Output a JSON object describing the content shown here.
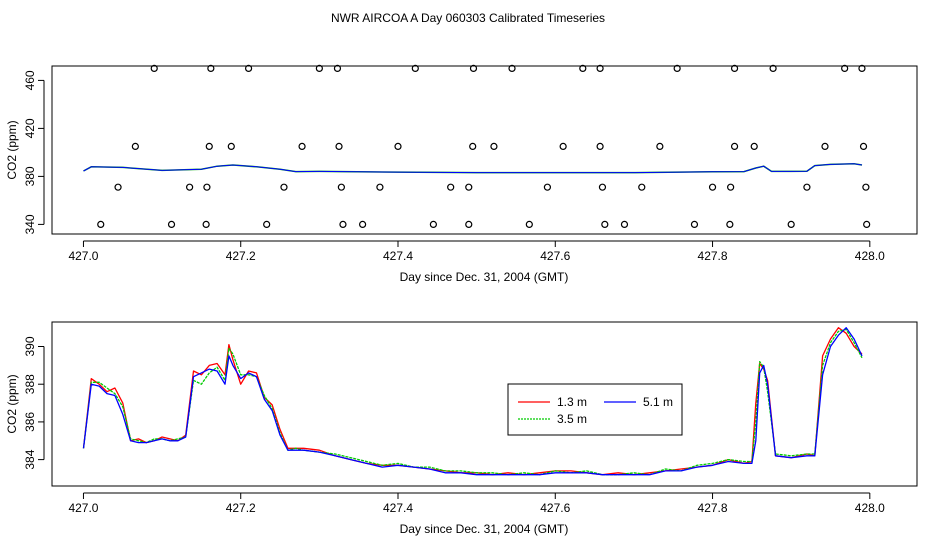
{
  "figure": {
    "title": "NWR AIRCOA A  Day 060303  Calibrated Timeseries"
  },
  "chart_data": [
    {
      "type": "scatter",
      "xlabel": "Day since Dec. 31, 2004 (GMT)",
      "ylabel": "CO2 (ppm)",
      "xlim": [
        426.96,
        428.06
      ],
      "ylim": [
        332,
        472
      ],
      "xticks": [
        427.0,
        427.2,
        427.4,
        427.6,
        427.8,
        428.0
      ],
      "xtick_labels": [
        "427.0",
        "427.2",
        "427.4",
        "427.6",
        "427.8",
        "428.0"
      ],
      "yticks": [
        340,
        380,
        420,
        460
      ],
      "ytick_labels": [
        "340",
        "380",
        "420",
        "460"
      ],
      "grid": false,
      "calibration_points": [
        [
          427.09,
          470
        ],
        [
          427.162,
          470
        ],
        [
          427.21,
          470
        ],
        [
          427.3,
          470
        ],
        [
          427.323,
          470
        ],
        [
          427.422,
          470
        ],
        [
          427.496,
          470
        ],
        [
          427.545,
          470
        ],
        [
          427.635,
          470
        ],
        [
          427.657,
          470
        ],
        [
          427.755,
          470
        ],
        [
          427.828,
          470
        ],
        [
          427.877,
          470
        ],
        [
          427.968,
          470
        ],
        [
          427.99,
          470
        ],
        [
          427.066,
          405
        ],
        [
          427.16,
          405
        ],
        [
          427.188,
          405
        ],
        [
          427.278,
          405
        ],
        [
          427.325,
          405
        ],
        [
          427.4,
          405
        ],
        [
          427.495,
          405
        ],
        [
          427.522,
          405
        ],
        [
          427.61,
          405
        ],
        [
          427.657,
          405
        ],
        [
          427.733,
          405
        ],
        [
          427.828,
          405
        ],
        [
          427.853,
          405
        ],
        [
          427.943,
          405
        ],
        [
          427.992,
          405
        ],
        [
          427.044,
          371
        ],
        [
          427.135,
          371
        ],
        [
          427.157,
          371
        ],
        [
          427.255,
          371
        ],
        [
          427.328,
          371
        ],
        [
          427.377,
          371
        ],
        [
          427.467,
          371
        ],
        [
          427.49,
          371
        ],
        [
          427.59,
          371
        ],
        [
          427.66,
          371
        ],
        [
          427.71,
          371
        ],
        [
          427.8,
          371
        ],
        [
          427.823,
          371
        ],
        [
          427.92,
          371
        ],
        [
          427.995,
          371
        ],
        [
          427.022,
          340
        ],
        [
          427.112,
          340
        ],
        [
          427.156,
          340
        ],
        [
          427.233,
          340
        ],
        [
          427.33,
          340
        ],
        [
          427.355,
          340
        ],
        [
          427.445,
          340
        ],
        [
          427.49,
          340
        ],
        [
          427.567,
          340
        ],
        [
          427.663,
          340
        ],
        [
          427.688,
          340
        ],
        [
          427.777,
          340
        ],
        [
          427.822,
          340
        ],
        [
          427.9,
          340
        ],
        [
          427.996,
          340
        ]
      ],
      "line_x": [
        427.0,
        427.01,
        427.05,
        427.1,
        427.15,
        427.17,
        427.19,
        427.22,
        427.25,
        427.27,
        427.3,
        427.4,
        427.5,
        427.6,
        427.7,
        427.8,
        427.84,
        427.855,
        427.865,
        427.875,
        427.9,
        427.92,
        427.93,
        427.95,
        427.98,
        427.99
      ],
      "line_y": [
        384.5,
        388.0,
        387.5,
        385.0,
        386.0,
        388.5,
        389.5,
        388.0,
        386.0,
        384.0,
        384.2,
        383.6,
        383.2,
        383.2,
        383.2,
        383.8,
        384.0,
        387.0,
        388.5,
        384.2,
        384.2,
        384.3,
        389.0,
        390.0,
        390.5,
        389.5
      ]
    },
    {
      "type": "line",
      "xlabel": "Day since Dec. 31, 2004 (GMT)",
      "ylabel": "CO2 (ppm)",
      "xlim": [
        426.96,
        428.06
      ],
      "ylim": [
        382.6,
        391.3
      ],
      "xticks": [
        427.0,
        427.2,
        427.4,
        427.6,
        427.8,
        428.0
      ],
      "xtick_labels": [
        "427.0",
        "427.2",
        "427.4",
        "427.6",
        "427.8",
        "428.0"
      ],
      "yticks": [
        384,
        386,
        388,
        390
      ],
      "ytick_labels": [
        "384",
        "386",
        "388",
        "390"
      ],
      "grid": false,
      "legend": "center-right",
      "x": [
        427.0,
        427.01,
        427.02,
        427.03,
        427.04,
        427.05,
        427.06,
        427.07,
        427.08,
        427.09,
        427.1,
        427.11,
        427.12,
        427.13,
        427.14,
        427.15,
        427.16,
        427.17,
        427.18,
        427.185,
        427.19,
        427.2,
        427.21,
        427.22,
        427.23,
        427.24,
        427.25,
        427.26,
        427.27,
        427.28,
        427.3,
        427.32,
        427.34,
        427.36,
        427.38,
        427.4,
        427.42,
        427.44,
        427.46,
        427.48,
        427.5,
        427.52,
        427.54,
        427.56,
        427.58,
        427.6,
        427.62,
        427.64,
        427.66,
        427.68,
        427.7,
        427.72,
        427.74,
        427.76,
        427.78,
        427.8,
        427.82,
        427.84,
        427.85,
        427.855,
        427.86,
        427.865,
        427.87,
        427.88,
        427.9,
        427.92,
        427.93,
        427.94,
        427.95,
        427.96,
        427.97,
        427.98,
        427.99
      ],
      "series": [
        {
          "name": "1.3 m",
          "color": "#ff0000",
          "values": [
            384.6,
            388.3,
            388.0,
            387.6,
            387.8,
            387.0,
            385.0,
            385.1,
            384.9,
            385.0,
            385.2,
            385.1,
            385.0,
            385.3,
            388.7,
            388.5,
            389.0,
            389.1,
            388.5,
            390.1,
            389.3,
            388.0,
            388.7,
            388.6,
            387.3,
            386.9,
            385.6,
            384.6,
            384.6,
            384.6,
            384.5,
            384.2,
            384.0,
            383.8,
            383.7,
            383.7,
            383.6,
            383.5,
            383.4,
            383.3,
            383.3,
            383.2,
            383.3,
            383.2,
            383.3,
            383.4,
            383.4,
            383.3,
            383.2,
            383.3,
            383.2,
            383.3,
            383.4,
            383.5,
            383.6,
            383.7,
            384.0,
            383.8,
            383.9,
            387.0,
            389.1,
            388.8,
            388.2,
            384.2,
            384.1,
            384.3,
            384.2,
            389.5,
            390.4,
            391.0,
            390.7,
            390.0,
            389.6
          ]
        },
        {
          "name": "3.5 m",
          "color": "#00cc00",
          "values": [
            384.6,
            388.1,
            388.1,
            387.8,
            387.5,
            386.8,
            385.1,
            385.0,
            384.9,
            385.1,
            385.1,
            385.0,
            385.1,
            385.2,
            388.2,
            388.0,
            388.6,
            388.9,
            388.2,
            389.9,
            389.6,
            388.5,
            388.5,
            388.4,
            387.4,
            386.7,
            385.4,
            384.5,
            384.6,
            384.5,
            384.4,
            384.3,
            384.1,
            383.9,
            383.7,
            383.8,
            383.6,
            383.6,
            383.4,
            383.4,
            383.3,
            383.3,
            383.2,
            383.3,
            383.2,
            383.4,
            383.3,
            383.4,
            383.2,
            383.2,
            383.3,
            383.2,
            383.5,
            383.4,
            383.7,
            383.8,
            384.0,
            383.9,
            383.9,
            386.0,
            389.2,
            388.9,
            387.6,
            384.3,
            384.2,
            384.3,
            384.3,
            389.0,
            390.2,
            390.8,
            390.9,
            390.2,
            389.4
          ]
        },
        {
          "name": "5.1 m",
          "color": "#0000ff",
          "values": [
            384.6,
            388.0,
            387.9,
            387.5,
            387.4,
            386.4,
            385.0,
            384.9,
            384.9,
            385.0,
            385.1,
            385.0,
            385.0,
            385.2,
            388.4,
            388.6,
            388.8,
            388.7,
            388.0,
            389.5,
            389.0,
            388.3,
            388.6,
            388.4,
            387.2,
            386.6,
            385.3,
            384.5,
            384.5,
            384.5,
            384.4,
            384.2,
            384.0,
            383.8,
            383.6,
            383.7,
            383.6,
            383.5,
            383.3,
            383.3,
            383.2,
            383.2,
            383.2,
            383.2,
            383.2,
            383.3,
            383.3,
            383.3,
            383.2,
            383.2,
            383.2,
            383.2,
            383.4,
            383.4,
            383.6,
            383.7,
            383.9,
            383.8,
            383.8,
            385.0,
            388.6,
            389.0,
            388.0,
            384.2,
            384.1,
            384.2,
            384.2,
            388.5,
            390.0,
            390.6,
            391.0,
            390.4,
            389.5
          ]
        }
      ]
    }
  ]
}
